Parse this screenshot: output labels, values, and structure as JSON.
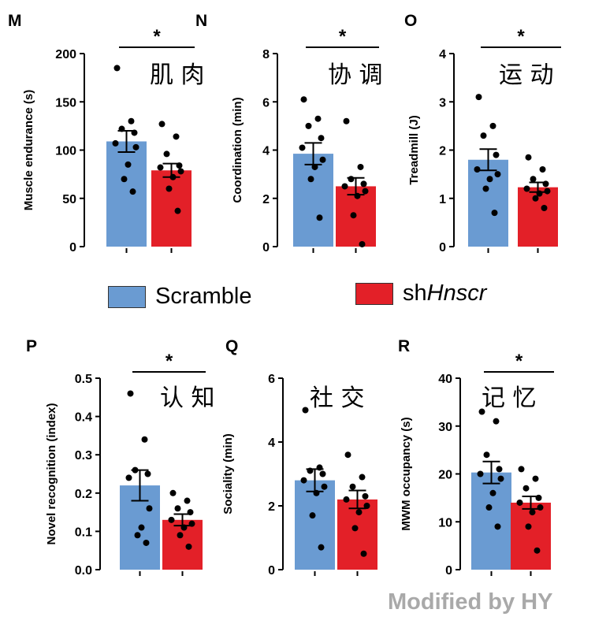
{
  "legend": {
    "scramble_label": "Scramble",
    "sh_prefix": "sh",
    "sh_italic": "Hnscr"
  },
  "colors": {
    "scramble": "#6a9bd2",
    "shHnscr": "#e32028"
  },
  "watermark": "Modified by HY",
  "chart_data": [
    {
      "panel": "M",
      "type": "bar",
      "chinese_label": "肌 肉",
      "ylabel": "Muscle endurance (s)",
      "ylim": [
        0,
        200
      ],
      "yticks": [
        "0",
        "50",
        "100",
        "150",
        "200"
      ],
      "significance": "*",
      "series": [
        {
          "name": "Scramble",
          "mean": 109,
          "sem": 11,
          "points": [
            185,
            130,
            122,
            118,
            107,
            103,
            85,
            70,
            57
          ]
        },
        {
          "name": "shHnscr",
          "mean": 79,
          "sem": 7,
          "points": [
            127,
            114,
            96,
            84,
            82,
            78,
            72,
            60,
            37
          ]
        }
      ]
    },
    {
      "panel": "N",
      "type": "bar",
      "chinese_label": "协 调",
      "ylabel": "Coordination (min)",
      "ylim": [
        0,
        8
      ],
      "yticks": [
        "0",
        "2",
        "4",
        "6",
        "8"
      ],
      "significance": "*",
      "series": [
        {
          "name": "Scramble",
          "mean": 3.85,
          "sem": 0.45,
          "points": [
            6.1,
            5.3,
            5.0,
            4.5,
            4.1,
            3.6,
            3.3,
            2.8,
            1.2
          ]
        },
        {
          "name": "shHnscr",
          "mean": 2.5,
          "sem": 0.35,
          "points": [
            5.2,
            3.3,
            2.8,
            2.6,
            2.5,
            2.3,
            2.1,
            1.3,
            0.1
          ]
        }
      ]
    },
    {
      "panel": "O",
      "type": "bar",
      "chinese_label": "运 动",
      "ylabel": "Treadmill (J)",
      "ylim": [
        0,
        4
      ],
      "yticks": [
        "0",
        "1",
        "2",
        "3",
        "4"
      ],
      "significance": "*",
      "series": [
        {
          "name": "Scramble",
          "mean": 1.8,
          "sem": 0.22,
          "points": [
            3.1,
            2.5,
            2.3,
            1.9,
            1.6,
            1.5,
            1.4,
            1.2,
            0.7
          ]
        },
        {
          "name": "shHnscr",
          "mean": 1.23,
          "sem": 0.1,
          "points": [
            1.85,
            1.6,
            1.4,
            1.3,
            1.2,
            1.15,
            1.1,
            1.0,
            0.8
          ]
        }
      ]
    },
    {
      "panel": "P",
      "type": "bar",
      "chinese_label": "认 知",
      "ylabel": "Novel recognition (index)",
      "ylim": [
        0,
        0.5
      ],
      "yticks": [
        "0.0",
        "0.1",
        "0.2",
        "0.3",
        "0.4",
        "0.5"
      ],
      "significance": "*",
      "series": [
        {
          "name": "Scramble",
          "mean": 0.22,
          "sem": 0.04,
          "points": [
            0.46,
            0.34,
            0.26,
            0.25,
            0.24,
            0.16,
            0.11,
            0.09,
            0.07
          ]
        },
        {
          "name": "shHnscr",
          "mean": 0.13,
          "sem": 0.015,
          "points": [
            0.2,
            0.18,
            0.16,
            0.15,
            0.13,
            0.12,
            0.11,
            0.09,
            0.06
          ]
        }
      ]
    },
    {
      "panel": "Q",
      "type": "bar",
      "chinese_label": "社 交",
      "ylabel": "Sociality (min)",
      "ylim": [
        0,
        6
      ],
      "yticks": [
        "0",
        "2",
        "4",
        "6"
      ],
      "significance": "",
      "series": [
        {
          "name": "Scramble",
          "mean": 2.8,
          "sem": 0.35,
          "points": [
            5.0,
            3.2,
            3.1,
            3.0,
            2.8,
            2.6,
            2.4,
            1.7,
            0.7
          ]
        },
        {
          "name": "shHnscr",
          "mean": 2.2,
          "sem": 0.28,
          "points": [
            3.6,
            2.9,
            2.6,
            2.3,
            2.2,
            2.0,
            1.8,
            1.3,
            0.5
          ]
        }
      ]
    },
    {
      "panel": "R",
      "type": "bar",
      "chinese_label": "记 忆",
      "ylabel": "MWM occupancy (s)",
      "ylim": [
        0,
        40
      ],
      "yticks": [
        "0",
        "10",
        "20",
        "30",
        "40"
      ],
      "significance": "*",
      "series": [
        {
          "name": "Scramble",
          "mean": 20.3,
          "sem": 2.3,
          "points": [
            33,
            31,
            24,
            21,
            20,
            19,
            16,
            13,
            9
          ]
        },
        {
          "name": "shHnscr",
          "mean": 14,
          "sem": 1.3,
          "points": [
            21,
            19,
            17,
            15,
            14,
            13,
            12,
            9,
            4
          ]
        }
      ]
    }
  ]
}
